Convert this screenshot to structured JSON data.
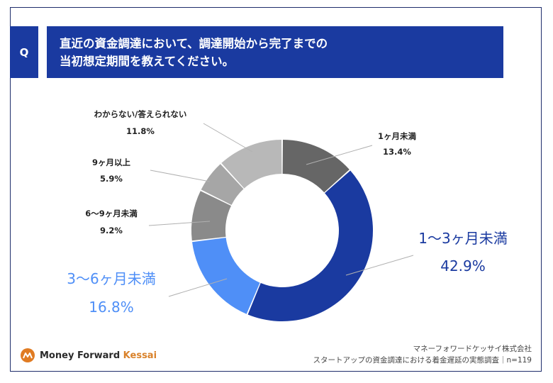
{
  "header": {
    "q_label": "Q",
    "question_line1": "直近の資金調達において、調達開始から完了までの",
    "question_line2": "当初想定期間を教えてください。"
  },
  "chart_data": {
    "type": "pie",
    "donut": true,
    "categories": [
      "1ヶ月未満",
      "1〜3ヶ月未満",
      "3〜6ヶ月未満",
      "6〜9ヶ月未満",
      "9ヶ月以上",
      "わからない/答えられない"
    ],
    "values": [
      13.4,
      42.9,
      16.8,
      9.2,
      5.9,
      11.8
    ],
    "value_labels": [
      "13.4%",
      "42.9%",
      "16.8%",
      "9.2%",
      "5.9%",
      "11.8%"
    ],
    "colors": [
      "#666666",
      "#1a3aa0",
      "#4f8ff7",
      "#8a8a8a",
      "#a6a6a6",
      "#b8b8b8"
    ],
    "label_colors": [
      "#222222",
      "#1a3aa0",
      "#4f8ff7",
      "#222222",
      "#222222",
      "#222222"
    ]
  },
  "footer": {
    "logo_brand": "Money Forward ",
    "logo_suffix": "Kessai",
    "company": "マネーフォワードケッサイ株式会社",
    "survey": "スタートアップの資金調達における着金遅延の実態調査｜n=119"
  }
}
